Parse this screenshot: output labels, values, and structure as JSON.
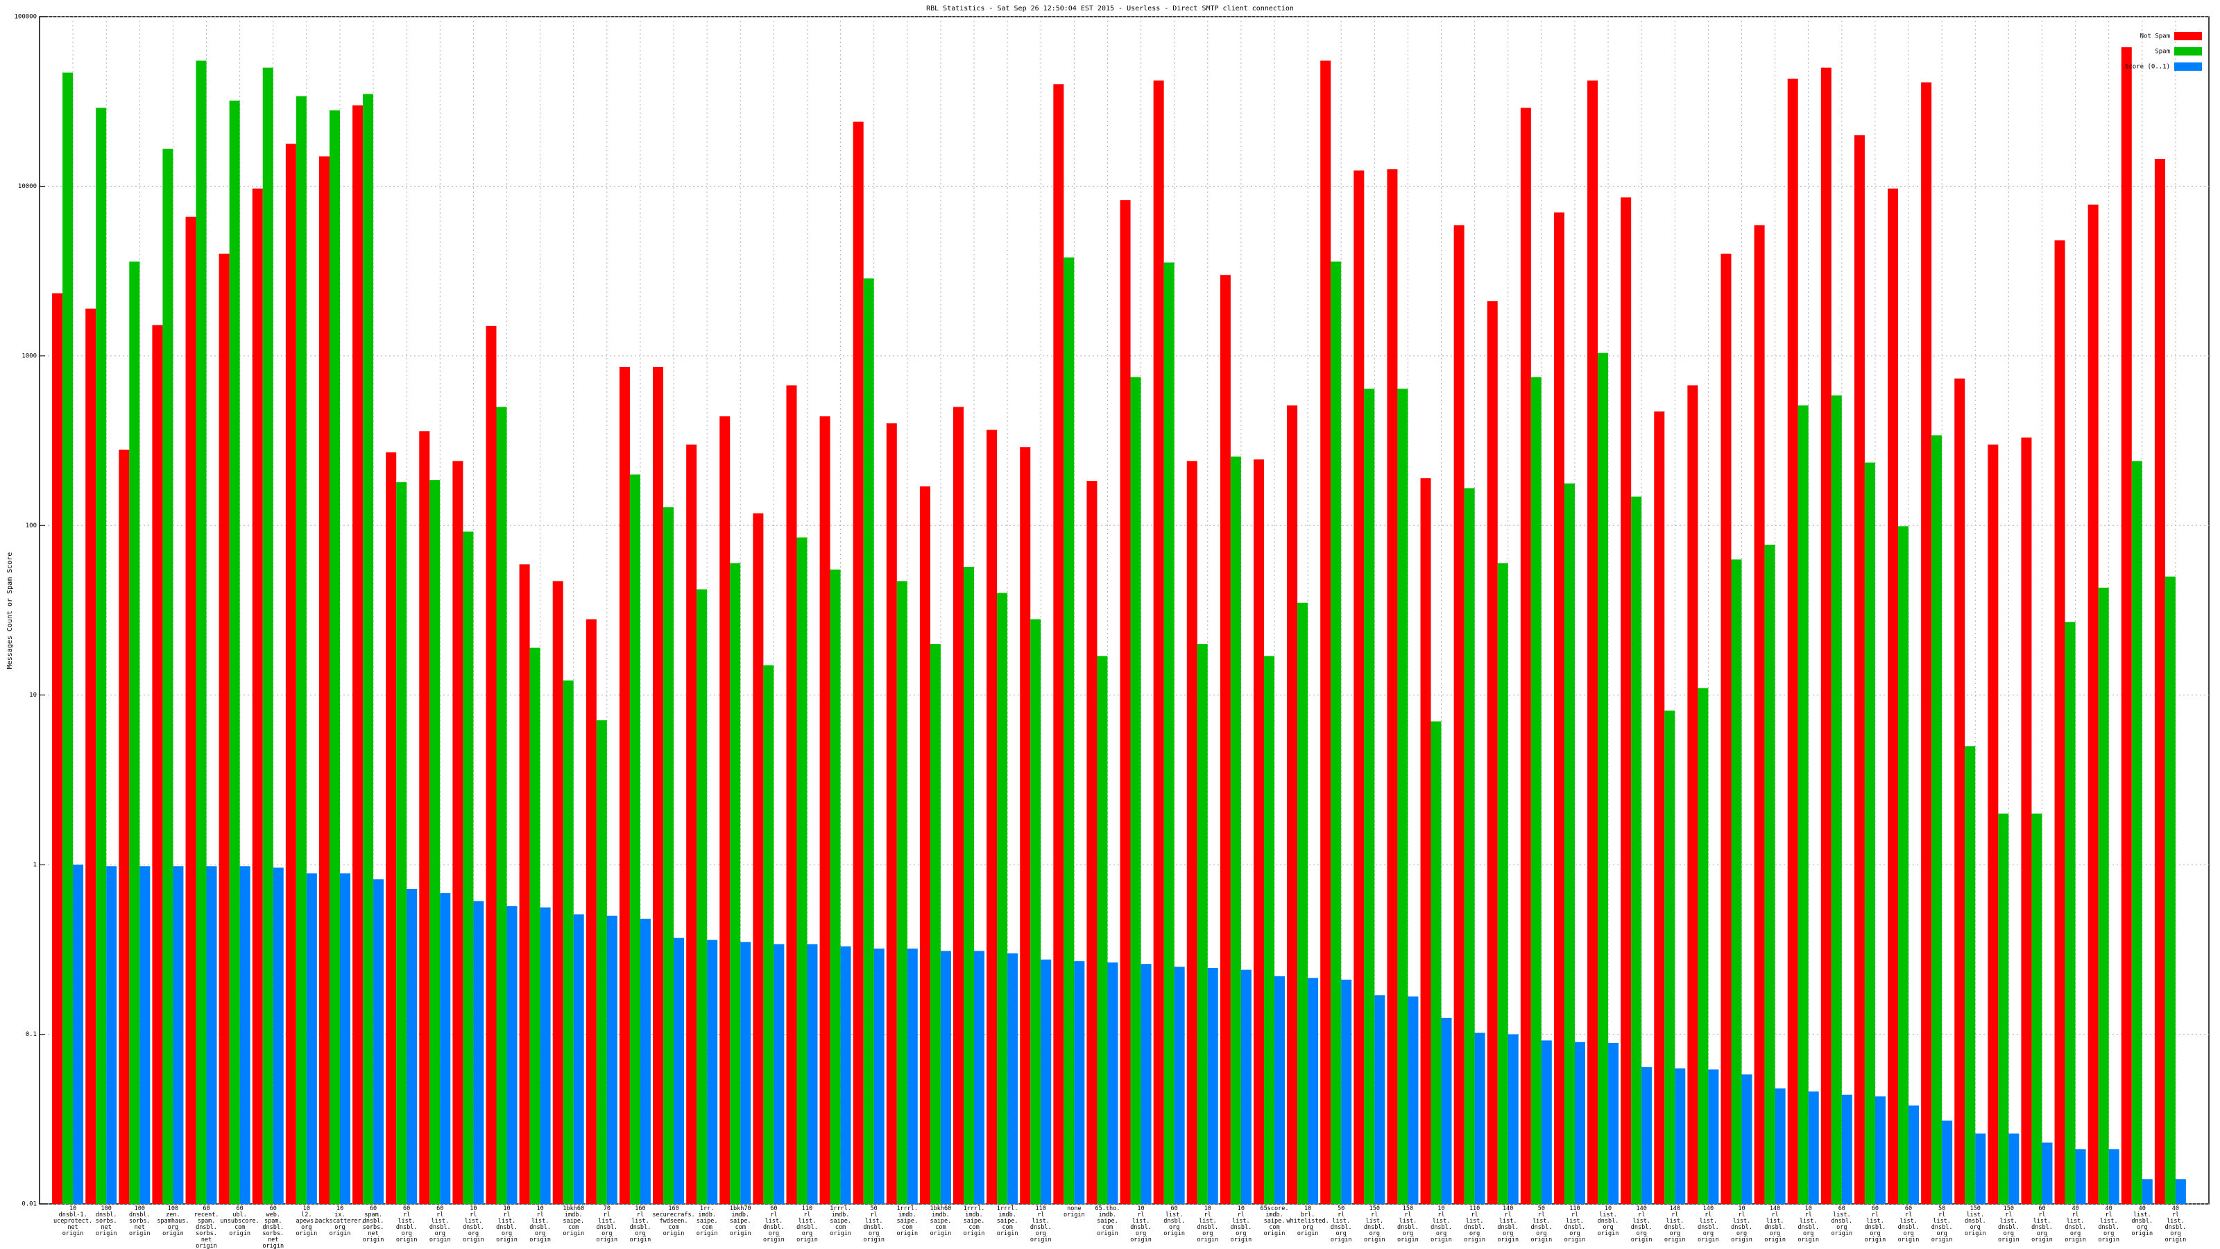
{
  "chart_data": {
    "type": "bar",
    "title": "RBL Statistics - Sat Sep 26 12:50:04 EST 2015 - Userless - Direct SMTP client connection",
    "y_label": "Messages Count or Spam Score",
    "log_scale": true,
    "grid": true,
    "legend_position": "top-right",
    "ylim": [
      0.01,
      100000
    ],
    "yticks": [
      0.01,
      0.1,
      1,
      10,
      100,
      1000,
      10000,
      100000
    ],
    "categories": [
      "10\ndnsbl-1.\nuceprotect.\nnet\norigin",
      "100\ndnsbl.\nsorbs.\nnet\norigin",
      "100\ndnsbl.\nsorbs.\nnet\norigin",
      "100\nzen.\nspamhaus.\norg\norigin",
      "60\nrecent.\nspam.\ndnsbl.\nsorbs.\nnet\norigin",
      "60\nubl.\nunsubscore.\ncom\norigin",
      "60\nweb.\nspam.\ndnsbl.\nsorbs.\nnet\norigin",
      "10\nl2.\napews.\norg\norigin",
      "10\nix.\nbackscatterer.\norg\norigin",
      "60\nspam.\ndnsbl.\nsorbs.\nnet\norigin",
      "60\nrl\nlist.\ndnsbl.\norg\norigin",
      "60\nrl\nlist.\ndnsbl.\norg\norigin",
      "10\nrl\nlist.\ndnsbl.\norg\norigin",
      "10\nrl\nlist.\ndnsbl.\norg\norigin",
      "10\nrl\nlist.\ndnsbl.\norg\norigin",
      "1bkh60\nimdb.\nsaipe.\ncom\norigin",
      "70\nrl\nlist.\ndnsbl.\norg\norigin",
      "160\nrl\nlist.\ndnsbl.\norg\norigin",
      "160\nsecurecrafs.\nfwdseen.\ncom\norigin",
      "1rr.\nimdb.\nsaipe.\ncom\norigin",
      "1bkh70\nimdb.\nsaipe.\ncom\norigin",
      "60\nrl\nlist.\ndnsbl.\norg\norigin",
      "110\nrl\nlist.\ndnsbl.\norg\norigin",
      "1rrrl.\nimdb.\nsaipe.\ncom\norigin",
      "50\nrl\nlist.\ndnsbl.\norg\norigin",
      "1rrrl.\nimdb.\nsaipe.\ncom\norigin",
      "1bkh60\nimdb.\nsaipe.\ncom\norigin",
      "1rrrl.\nimdb.\nsaipe.\ncom\norigin",
      "1rrrl.\nimdb.\nsaipe.\ncom\norigin",
      "110\nrl\nlist.\ndnsbl.\norg\norigin",
      "none\norigin",
      "65.tho.\nimdb.\nsaipe.\ncom\norigin",
      "10\nrl\nlist.\ndnsbl.\norg\norigin",
      "60\nlist.\ndnsbl.\norg\norigin",
      "10\nrl\nlist.\ndnsbl.\norg\norigin",
      "10\nrl\nlist.\ndnsbl.\norg\norigin",
      "65score.\nimdb.\nsaipe.\ncom\norigin",
      "10\nbrl.\nwhitelisted.\norg\norigin",
      "50\nrl\nlist.\ndnsbl.\norg\norigin",
      "150\nrl\nlist.\ndnsbl.\norg\norigin",
      "150\nrl\nlist.\ndnsbl.\norg\norigin",
      "10\nrl\nlist.\ndnsbl.\norg\norigin",
      "110\nrl\nlist.\ndnsbl.\norg\norigin",
      "140\nrl\nlist.\ndnsbl.\norg\norigin",
      "50\nrl\nlist.\ndnsbl.\norg\norigin",
      "110\nrl\nlist.\ndnsbl.\norg\norigin",
      "10\nlist.\ndnsbl.\norg\norigin",
      "140\nrl\nlist.\ndnsbl.\norg\norigin",
      "140\nrl\nlist.\ndnsbl.\norg\norigin",
      "140\nrl\nlist.\ndnsbl.\norg\norigin",
      "10\nrl\nlist.\ndnsbl.\norg\norigin",
      "140\nrl\nlist.\ndnsbl.\norg\norigin",
      "10\nrl\nlist.\ndnsbl.\norg\norigin",
      "60\nlist.\ndnsbl.\norg\norigin",
      "60\nrl\nlist.\ndnsbl.\norg\norigin",
      "60\nrl\nlist.\ndnsbl.\norg\norigin",
      "50\nrl\nlist.\ndnsbl.\norg\norigin",
      "150\nlist.\ndnsbl.\norg\norigin",
      "150\nrl\nlist.\ndnsbl.\norg\norigin",
      "60\nrl\nlist.\ndnsbl.\norg\norigin",
      "40\nrl\nlist.\ndnsbl.\norg\norigin",
      "40\nrl\nlist.\ndnsbl.\norg\norigin",
      "40\nlist.\ndnsbl.\norg\norigin",
      "40\nrl\nlist.\ndnsbl.\norg\norigin"
    ],
    "series": [
      {
        "name": "Not Spam",
        "color": "#ff0000",
        "values": [
          2340,
          1900,
          280,
          1520,
          6600,
          4000,
          9700,
          17800,
          15000,
          30000,
          270,
          360,
          240,
          1500,
          59,
          47,
          28,
          860,
          860,
          300,
          440,
          118,
          670,
          440,
          24000,
          400,
          170,
          500,
          366,
          290,
          40000,
          183,
          8300,
          42000,
          240,
          3000,
          245,
          510,
          55000,
          12400,
          12600,
          190,
          5900,
          2100,
          29000,
          7000,
          42000,
          8600,
          470,
          670,
          4000,
          5900,
          43000,
          50000,
          20000,
          9700,
          41000,
          735,
          300,
          330,
          4800,
          7800,
          66000,
          14500
        ]
      },
      {
        "name": "Spam",
        "color": "#00c000",
        "values": [
          46800,
          29000,
          3600,
          16600,
          55000,
          32000,
          50000,
          34000,
          28000,
          35000,
          180,
          185,
          92,
          500,
          19,
          12.2,
          7.1,
          200,
          128,
          42,
          60,
          15,
          85,
          55,
          2860,
          47,
          20,
          57,
          40,
          28,
          3800,
          17,
          750,
          3550,
          20,
          255,
          17,
          35,
          3600,
          640,
          640,
          7.0,
          166,
          60,
          750,
          177,
          1040,
          148,
          8.1,
          11,
          63,
          77,
          510,
          585,
          235,
          99,
          340,
          5.0,
          2.0,
          2.0,
          27,
          43,
          240,
          50
        ]
      },
      {
        "name": "Score (0..1)",
        "color": "#0080ff",
        "values": [
          1,
          0.98,
          0.98,
          0.98,
          0.98,
          0.98,
          0.96,
          0.89,
          0.89,
          0.82,
          0.72,
          0.68,
          0.61,
          0.57,
          0.56,
          0.51,
          0.5,
          0.48,
          0.37,
          0.36,
          0.35,
          0.34,
          0.34,
          0.33,
          0.32,
          0.32,
          0.31,
          0.31,
          0.3,
          0.276,
          0.27,
          0.265,
          0.26,
          0.25,
          0.246,
          0.24,
          0.22,
          0.215,
          0.21,
          0.17,
          0.167,
          0.125,
          0.102,
          0.1,
          0.092,
          0.09,
          0.089,
          0.064,
          0.063,
          0.062,
          0.058,
          0.048,
          0.046,
          0.044,
          0.043,
          0.038,
          0.031,
          0.026,
          0.026,
          0.023,
          0.021,
          0.021,
          0.014,
          0.014
        ]
      }
    ]
  }
}
